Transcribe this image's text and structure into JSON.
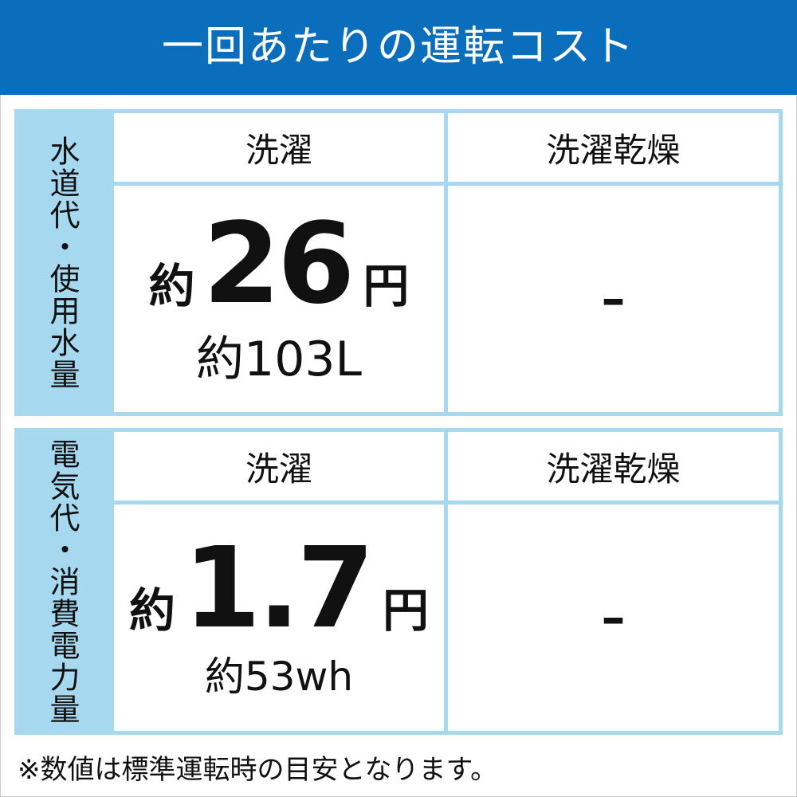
{
  "title": "一回あたりの運転コスト",
  "sections": [
    {
      "label": "水道代・使用水量",
      "columns": [
        "洗濯",
        "洗濯乾燥"
      ],
      "wash": {
        "prefix": "約",
        "value": "26",
        "unit": "円",
        "sub": "約103L"
      },
      "wash_dry": "–"
    },
    {
      "label": "電気代・消費電力量",
      "columns": [
        "洗濯",
        "洗濯乾燥"
      ],
      "wash": {
        "prefix": "約",
        "value": "1.7",
        "unit": "円",
        "sub": "約53wh"
      },
      "wash_dry": "–"
    }
  ],
  "note": "※数値は標準運転時の目安となります。",
  "colors": {
    "header": "#0a6ebd",
    "table": "#a6d8f0"
  }
}
